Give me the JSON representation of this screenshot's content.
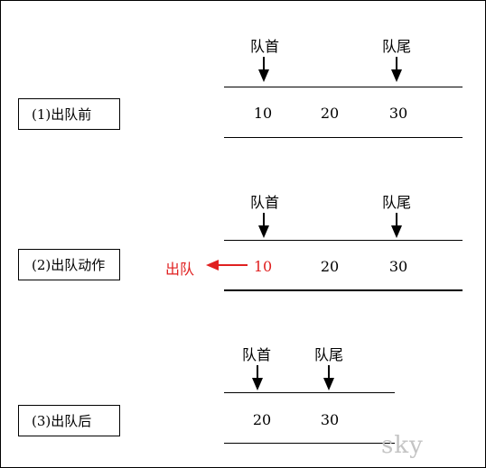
{
  "steps": [
    {
      "label": "(1)出队前",
      "head_label": "队首",
      "tail_label": "队尾",
      "values": [
        "10",
        "20",
        "30"
      ]
    },
    {
      "label": "(2)出队动作",
      "head_label": "队首",
      "tail_label": "队尾",
      "values": [
        "10",
        "20",
        "30"
      ],
      "dequeue_label": "出队"
    },
    {
      "label": "(3)出队后",
      "head_label": "队首",
      "tail_label": "队尾",
      "values": [
        "20",
        "30"
      ]
    }
  ],
  "watermark": "sky",
  "colors": {
    "highlight": "#e02020",
    "line": "#000000"
  }
}
